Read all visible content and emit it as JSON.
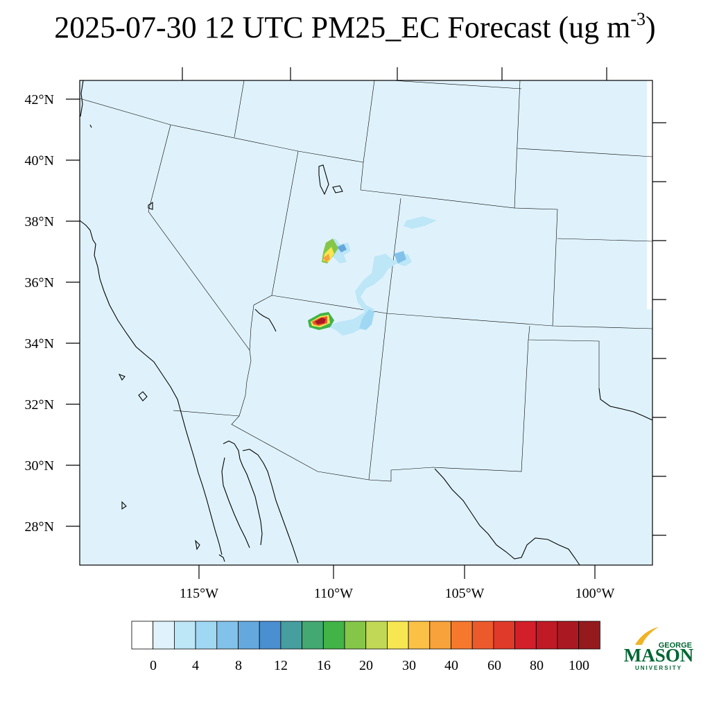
{
  "title": {
    "main": "2025-07-30 12 UTC PM25_EC Forecast (ug m",
    "exponent": "-3",
    "close": ")"
  },
  "map": {
    "lat_labels": [
      "42°N",
      "40°N",
      "38°N",
      "36°N",
      "34°N",
      "32°N",
      "30°N",
      "28°N"
    ],
    "lon_labels": [
      "115°W",
      "110°W",
      "105°W",
      "100°W"
    ],
    "background_color": "#dff2fc"
  },
  "colorbar": {
    "colors": [
      "#ffffff",
      "#e0f3fc",
      "#bde6f7",
      "#a0d8f3",
      "#82c2ea",
      "#65a8dd",
      "#4a8fd0",
      "#469e9f",
      "#43a871",
      "#41b347",
      "#85c649",
      "#c1d856",
      "#f6e652",
      "#fbc146",
      "#f8a23b",
      "#f5782d",
      "#ec5a2c",
      "#e03a2a",
      "#d31f2a",
      "#c01a26",
      "#aa1922",
      "#951a1e"
    ],
    "tick_labels": [
      "0",
      "4",
      "8",
      "12",
      "16",
      "20",
      "30",
      "40",
      "60",
      "80",
      "100"
    ]
  },
  "logo": {
    "line1": "GEORGE",
    "line2": "MASON",
    "line3": "UNIVERSITY"
  }
}
